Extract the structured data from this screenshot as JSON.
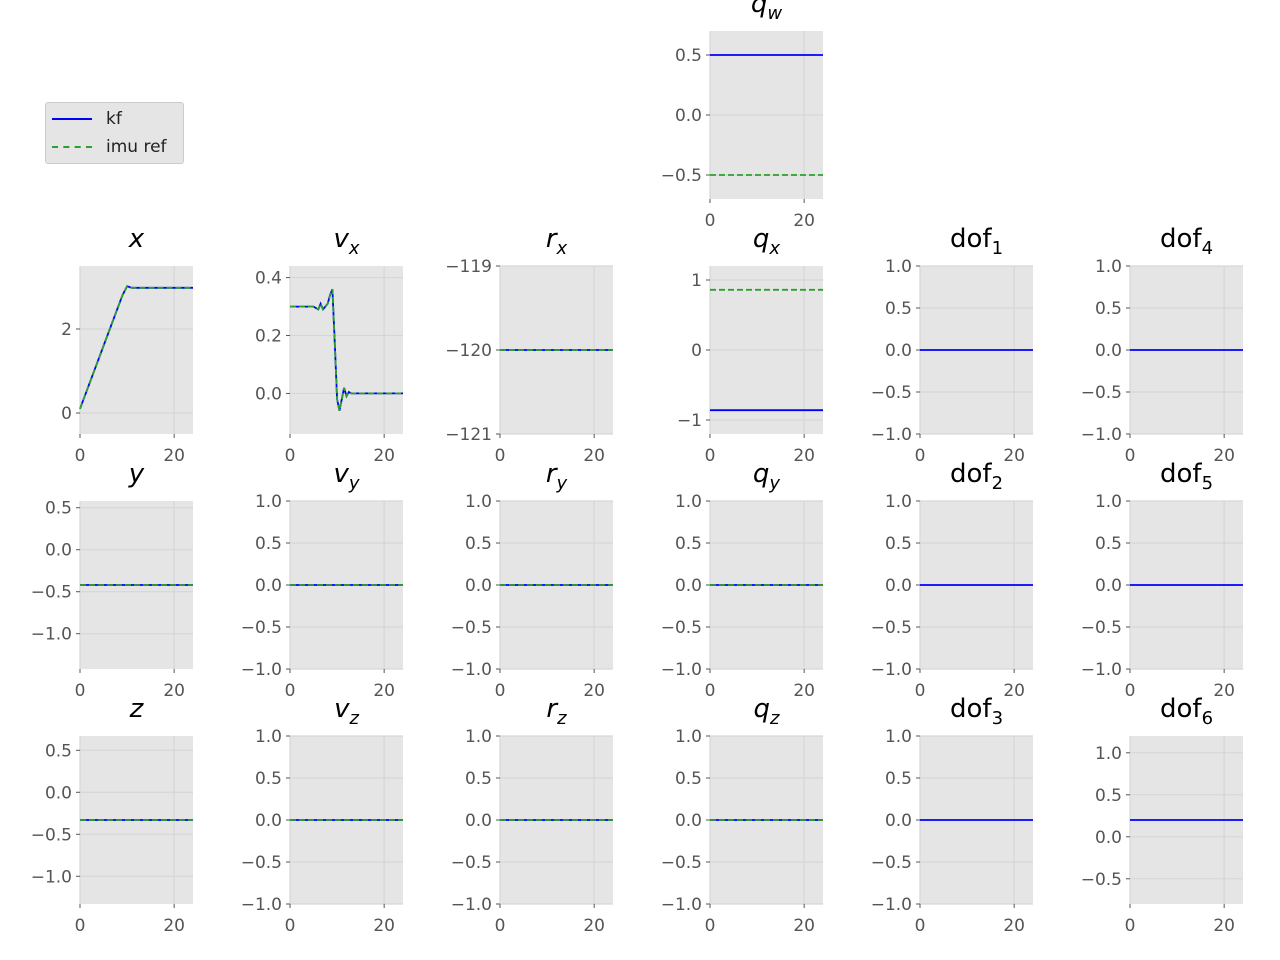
{
  "legend": {
    "entries": [
      {
        "label": "kf",
        "color": "#0000ff",
        "style": "solid"
      },
      {
        "label": "imu ref",
        "color": "#2ca02c",
        "style": "dashed"
      }
    ]
  },
  "colors": {
    "kf": "#0000ff",
    "ref": "#2ca02c",
    "axes_bg": "#e5e5e5",
    "grid": "#d6d6d6",
    "tick_text": "#555555"
  },
  "chart_data": [
    {
      "id": "qw",
      "type": "line",
      "title_base": "q",
      "title_sub": "w",
      "title_italic": true,
      "xlim": [
        0,
        24
      ],
      "ylim": [
        -0.7,
        0.7
      ],
      "xticks": [
        "0",
        "20"
      ],
      "yticks": [
        "0.5",
        "0.0",
        "−0.5"
      ],
      "ytick_values": [
        0.5,
        0,
        -0.5
      ],
      "grid": true,
      "series": [
        {
          "name": "kf",
          "x": [
            0,
            24
          ],
          "y": [
            0.5,
            0.5
          ]
        },
        {
          "name": "imu ref",
          "x": [
            0,
            24
          ],
          "y": [
            -0.5,
            -0.5
          ]
        }
      ]
    },
    {
      "id": "x",
      "type": "line",
      "title_base": "x",
      "title_sub": "",
      "title_italic": true,
      "xlim": [
        0,
        24
      ],
      "ylim": [
        -0.5,
        3.5
      ],
      "xticks": [
        "0",
        "20"
      ],
      "yticks": [
        "2",
        "0"
      ],
      "ytick_values": [
        2,
        0
      ],
      "grid": true,
      "series": [
        {
          "name": "kf",
          "x": [
            0,
            9,
            10,
            11,
            24
          ],
          "y": [
            0.1,
            2.8,
            3.02,
            2.98,
            2.98
          ]
        },
        {
          "name": "imu ref",
          "x": [
            0,
            9,
            10,
            11,
            24
          ],
          "y": [
            0.1,
            2.8,
            3.02,
            2.98,
            2.98
          ]
        }
      ]
    },
    {
      "id": "vx",
      "type": "line",
      "title_base": "v",
      "title_sub": "x",
      "title_italic": true,
      "xlim": [
        0,
        24
      ],
      "ylim": [
        -0.14,
        0.44
      ],
      "xticks": [
        "0",
        "20"
      ],
      "yticks": [
        "0.4",
        "0.2",
        "0.0"
      ],
      "ytick_values": [
        0.4,
        0.2,
        0
      ],
      "grid": true,
      "series": [
        {
          "name": "kf",
          "x": [
            0,
            5,
            6,
            6.5,
            7,
            7.5,
            8,
            8.5,
            9,
            9.5,
            10,
            10.5,
            11,
            11.5,
            12,
            12.5,
            13,
            14,
            24
          ],
          "y": [
            0.3,
            0.3,
            0.29,
            0.31,
            0.29,
            0.3,
            0.31,
            0.34,
            0.36,
            0.18,
            -0.02,
            -0.06,
            -0.02,
            0.02,
            -0.01,
            0.005,
            0,
            0,
            0
          ]
        },
        {
          "name": "imu ref",
          "x": [
            0,
            5,
            6,
            6.5,
            7,
            7.5,
            8,
            8.5,
            9,
            9.5,
            10,
            10.5,
            11,
            11.5,
            12,
            12.5,
            13,
            14,
            24
          ],
          "y": [
            0.3,
            0.3,
            0.29,
            0.31,
            0.29,
            0.3,
            0.31,
            0.34,
            0.36,
            0.18,
            -0.02,
            -0.06,
            -0.02,
            0.02,
            -0.01,
            0.005,
            0,
            0,
            0
          ]
        }
      ]
    },
    {
      "id": "rx",
      "type": "line",
      "title_base": "r",
      "title_sub": "x",
      "title_italic": true,
      "xlim": [
        0,
        24
      ],
      "ylim": [
        -121,
        -119
      ],
      "xticks": [
        "0",
        "20"
      ],
      "yticks": [
        "−119",
        "−120",
        "−121"
      ],
      "ytick_values": [
        -119,
        -120,
        -121
      ],
      "grid": true,
      "series": [
        {
          "name": "kf",
          "x": [
            0,
            24
          ],
          "y": [
            -120,
            -120
          ]
        },
        {
          "name": "imu ref",
          "x": [
            0,
            24
          ],
          "y": [
            -120,
            -120
          ]
        }
      ]
    },
    {
      "id": "qx",
      "type": "line",
      "title_base": "q",
      "title_sub": "x",
      "title_italic": true,
      "xlim": [
        0,
        24
      ],
      "ylim": [
        -1.2,
        1.2
      ],
      "xticks": [
        "0",
        "20"
      ],
      "yticks": [
        "1",
        "0",
        "−1"
      ],
      "ytick_values": [
        1,
        0,
        -1
      ],
      "grid": true,
      "series": [
        {
          "name": "kf",
          "x": [
            0,
            24
          ],
          "y": [
            -0.86,
            -0.86
          ]
        },
        {
          "name": "imu ref",
          "x": [
            0,
            24
          ],
          "y": [
            0.86,
            0.86
          ]
        }
      ]
    },
    {
      "id": "dof1",
      "type": "line",
      "title_base": "dof",
      "title_sub": "1",
      "title_italic": false,
      "xlim": [
        0,
        24
      ],
      "ylim": [
        -1,
        1
      ],
      "xticks": [
        "0",
        "20"
      ],
      "yticks": [
        "1.0",
        "0.5",
        "0.0",
        "−0.5",
        "−1.0"
      ],
      "ytick_values": [
        1,
        0.5,
        0,
        -0.5,
        -1
      ],
      "grid": true,
      "series": [
        {
          "name": "kf",
          "x": [
            0,
            24
          ],
          "y": [
            0,
            0
          ]
        }
      ]
    },
    {
      "id": "dof4",
      "type": "line",
      "title_base": "dof",
      "title_sub": "4",
      "title_italic": false,
      "xlim": [
        0,
        24
      ],
      "ylim": [
        -1,
        1
      ],
      "xticks": [
        "0",
        "20"
      ],
      "yticks": [
        "1.0",
        "0.5",
        "0.0",
        "−0.5",
        "−1.0"
      ],
      "ytick_values": [
        1,
        0.5,
        0,
        -0.5,
        -1
      ],
      "grid": true,
      "series": [
        {
          "name": "kf",
          "x": [
            0,
            24
          ],
          "y": [
            0,
            0
          ]
        }
      ]
    },
    {
      "id": "y",
      "type": "line",
      "title_base": "y",
      "title_sub": "",
      "title_italic": true,
      "xlim": [
        0,
        24
      ],
      "ylim": [
        -1.42,
        0.58
      ],
      "xticks": [
        "0",
        "20"
      ],
      "yticks": [
        "0.5",
        "0.0",
        "−0.5",
        "−1.0"
      ],
      "ytick_values": [
        0.5,
        0,
        -0.5,
        -1
      ],
      "grid": true,
      "series": [
        {
          "name": "kf",
          "x": [
            0,
            24
          ],
          "y": [
            -0.42,
            -0.42
          ]
        },
        {
          "name": "imu ref",
          "x": [
            0,
            24
          ],
          "y": [
            -0.42,
            -0.42
          ]
        }
      ]
    },
    {
      "id": "vy",
      "type": "line",
      "title_base": "v",
      "title_sub": "y",
      "title_italic": true,
      "xlim": [
        0,
        24
      ],
      "ylim": [
        -1,
        1
      ],
      "xticks": [
        "0",
        "20"
      ],
      "yticks": [
        "1.0",
        "0.5",
        "0.0",
        "−0.5",
        "−1.0"
      ],
      "ytick_values": [
        1,
        0.5,
        0,
        -0.5,
        -1
      ],
      "grid": true,
      "series": [
        {
          "name": "kf",
          "x": [
            0,
            24
          ],
          "y": [
            0,
            0
          ]
        },
        {
          "name": "imu ref",
          "x": [
            0,
            24
          ],
          "y": [
            0,
            0
          ]
        }
      ]
    },
    {
      "id": "ry",
      "type": "line",
      "title_base": "r",
      "title_sub": "y",
      "title_italic": true,
      "xlim": [
        0,
        24
      ],
      "ylim": [
        -1,
        1
      ],
      "xticks": [
        "0",
        "20"
      ],
      "yticks": [
        "1.0",
        "0.5",
        "0.0",
        "−0.5",
        "−1.0"
      ],
      "ytick_values": [
        1,
        0.5,
        0,
        -0.5,
        -1
      ],
      "grid": true,
      "series": [
        {
          "name": "kf",
          "x": [
            0,
            24
          ],
          "y": [
            0,
            0
          ]
        },
        {
          "name": "imu ref",
          "x": [
            0,
            24
          ],
          "y": [
            0,
            0
          ]
        }
      ]
    },
    {
      "id": "qy",
      "type": "line",
      "title_base": "q",
      "title_sub": "y",
      "title_italic": true,
      "xlim": [
        0,
        24
      ],
      "ylim": [
        -1,
        1
      ],
      "xticks": [
        "0",
        "20"
      ],
      "yticks": [
        "1.0",
        "0.5",
        "0.0",
        "−0.5",
        "−1.0"
      ],
      "ytick_values": [
        1,
        0.5,
        0,
        -0.5,
        -1
      ],
      "grid": true,
      "series": [
        {
          "name": "kf",
          "x": [
            0,
            24
          ],
          "y": [
            0,
            0
          ]
        },
        {
          "name": "imu ref",
          "x": [
            0,
            24
          ],
          "y": [
            0,
            0
          ]
        }
      ]
    },
    {
      "id": "dof2",
      "type": "line",
      "title_base": "dof",
      "title_sub": "2",
      "title_italic": false,
      "xlim": [
        0,
        24
      ],
      "ylim": [
        -1,
        1
      ],
      "xticks": [
        "0",
        "20"
      ],
      "yticks": [
        "1.0",
        "0.5",
        "0.0",
        "−0.5",
        "−1.0"
      ],
      "ytick_values": [
        1,
        0.5,
        0,
        -0.5,
        -1
      ],
      "grid": true,
      "series": [
        {
          "name": "kf",
          "x": [
            0,
            24
          ],
          "y": [
            0,
            0
          ]
        }
      ]
    },
    {
      "id": "dof5",
      "type": "line",
      "title_base": "dof",
      "title_sub": "5",
      "title_italic": false,
      "xlim": [
        0,
        24
      ],
      "ylim": [
        -1,
        1
      ],
      "xticks": [
        "0",
        "20"
      ],
      "yticks": [
        "1.0",
        "0.5",
        "0.0",
        "−0.5",
        "−1.0"
      ],
      "ytick_values": [
        1,
        0.5,
        0,
        -0.5,
        -1
      ],
      "grid": true,
      "series": [
        {
          "name": "kf",
          "x": [
            0,
            24
          ],
          "y": [
            0,
            0
          ]
        }
      ]
    },
    {
      "id": "z",
      "type": "line",
      "title_base": "z",
      "title_sub": "",
      "title_italic": true,
      "xlim": [
        0,
        24
      ],
      "ylim": [
        -1.33,
        0.67
      ],
      "xticks": [
        "0",
        "20"
      ],
      "yticks": [
        "0.5",
        "0.0",
        "−0.5",
        "−1.0"
      ],
      "ytick_values": [
        0.5,
        0,
        -0.5,
        -1
      ],
      "grid": true,
      "series": [
        {
          "name": "kf",
          "x": [
            0,
            24
          ],
          "y": [
            -0.33,
            -0.33
          ]
        },
        {
          "name": "imu ref",
          "x": [
            0,
            24
          ],
          "y": [
            -0.33,
            -0.33
          ]
        }
      ]
    },
    {
      "id": "vz",
      "type": "line",
      "title_base": "v",
      "title_sub": "z",
      "title_italic": true,
      "xlim": [
        0,
        24
      ],
      "ylim": [
        -1,
        1
      ],
      "xticks": [
        "0",
        "20"
      ],
      "yticks": [
        "1.0",
        "0.5",
        "0.0",
        "−0.5",
        "−1.0"
      ],
      "ytick_values": [
        1,
        0.5,
        0,
        -0.5,
        -1
      ],
      "grid": true,
      "series": [
        {
          "name": "kf",
          "x": [
            0,
            24
          ],
          "y": [
            0,
            0
          ]
        },
        {
          "name": "imu ref",
          "x": [
            0,
            24
          ],
          "y": [
            0,
            0
          ]
        }
      ]
    },
    {
      "id": "rz",
      "type": "line",
      "title_base": "r",
      "title_sub": "z",
      "title_italic": true,
      "xlim": [
        0,
        24
      ],
      "ylim": [
        -1,
        1
      ],
      "xticks": [
        "0",
        "20"
      ],
      "yticks": [
        "1.0",
        "0.5",
        "0.0",
        "−0.5",
        "−1.0"
      ],
      "ytick_values": [
        1,
        0.5,
        0,
        -0.5,
        -1
      ],
      "grid": true,
      "series": [
        {
          "name": "kf",
          "x": [
            0,
            24
          ],
          "y": [
            0,
            0
          ]
        },
        {
          "name": "imu ref",
          "x": [
            0,
            24
          ],
          "y": [
            0,
            0
          ]
        }
      ]
    },
    {
      "id": "qz",
      "type": "line",
      "title_base": "q",
      "title_sub": "z",
      "title_italic": true,
      "xlim": [
        0,
        24
      ],
      "ylim": [
        -1,
        1
      ],
      "xticks": [
        "0",
        "20"
      ],
      "yticks": [
        "1.0",
        "0.5",
        "0.0",
        "−0.5",
        "−1.0"
      ],
      "ytick_values": [
        1,
        0.5,
        0,
        -0.5,
        -1
      ],
      "grid": true,
      "series": [
        {
          "name": "kf",
          "x": [
            0,
            24
          ],
          "y": [
            0,
            0
          ]
        },
        {
          "name": "imu ref",
          "x": [
            0,
            24
          ],
          "y": [
            0,
            0
          ]
        }
      ]
    },
    {
      "id": "dof3",
      "type": "line",
      "title_base": "dof",
      "title_sub": "3",
      "title_italic": false,
      "xlim": [
        0,
        24
      ],
      "ylim": [
        -1,
        1
      ],
      "xticks": [
        "0",
        "20"
      ],
      "yticks": [
        "1.0",
        "0.5",
        "0.0",
        "−0.5",
        "−1.0"
      ],
      "ytick_values": [
        1,
        0.5,
        0,
        -0.5,
        -1
      ],
      "grid": true,
      "series": [
        {
          "name": "kf",
          "x": [
            0,
            24
          ],
          "y": [
            0,
            0
          ]
        }
      ]
    },
    {
      "id": "dof6",
      "type": "line",
      "title_base": "dof",
      "title_sub": "6",
      "title_italic": false,
      "xlim": [
        0,
        24
      ],
      "ylim": [
        -0.8,
        1.2
      ],
      "xticks": [
        "0",
        "20"
      ],
      "yticks": [
        "1.0",
        "0.5",
        "0.0",
        "−0.5"
      ],
      "ytick_values": [
        1,
        0.5,
        0,
        -0.5
      ],
      "grid": true,
      "series": [
        {
          "name": "kf",
          "x": [
            0,
            24
          ],
          "y": [
            0.2,
            0.2
          ]
        }
      ]
    }
  ]
}
